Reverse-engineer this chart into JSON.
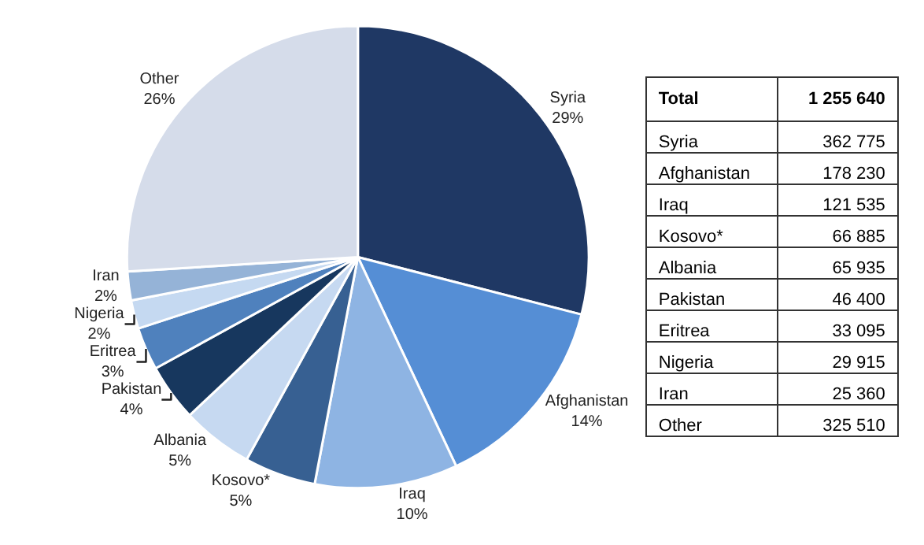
{
  "chart_data": [
    {
      "type": "pie",
      "categories": [
        "Syria",
        "Afghanistan",
        "Iraq",
        "Kosovo*",
        "Albania",
        "Pakistan",
        "Eritrea",
        "Nigeria",
        "Iran",
        "Other"
      ],
      "values": [
        29,
        14,
        10,
        5,
        5,
        4,
        3,
        2,
        2,
        26
      ],
      "value_labels": [
        "29%",
        "14%",
        "10%",
        "5%",
        "5%",
        "4%",
        "3%",
        "2%",
        "2%",
        "26%"
      ],
      "colors": [
        "#1f3864",
        "#558ed5",
        "#8eb4e3",
        "#376092",
        "#c6d9f1",
        "#17375e",
        "#4f81bd",
        "#c5d9f1",
        "#95b3d7",
        "#d5dcea"
      ],
      "legend": false
    },
    {
      "type": "other",
      "categories": [
        "Syria",
        "Afghanistan",
        "Iraq",
        "Kosovo*",
        "Albania",
        "Pakistan",
        "Eritrea",
        "Nigeria",
        "Iran",
        "Other"
      ],
      "values": [
        362775,
        178230,
        121535,
        66885,
        65935,
        46400,
        33095,
        29915,
        25360,
        325510
      ],
      "value_labels": [
        "362 775",
        "178 230",
        "121 535",
        "66 885",
        "65 935",
        "46 400",
        "33 095",
        "29 915",
        "25 360",
        "325 510"
      ],
      "annotations": [
        "Total"
      ],
      "totals": [
        "1 255 640"
      ]
    }
  ]
}
